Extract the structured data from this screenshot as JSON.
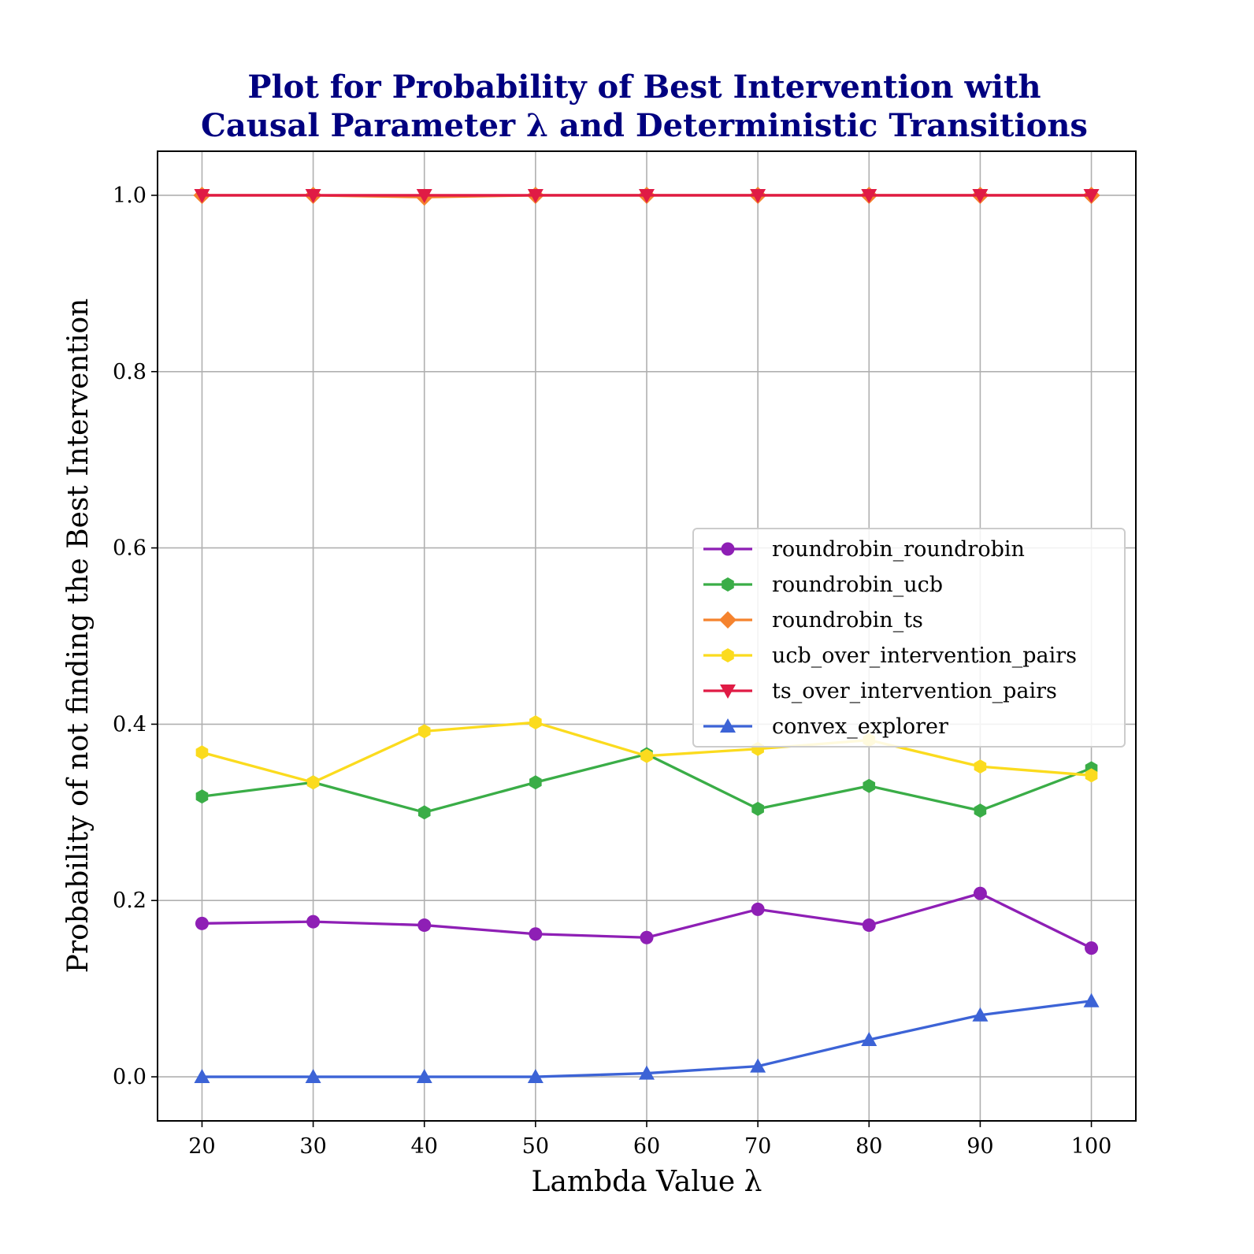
{
  "chart_data": {
    "type": "line",
    "title_lines": [
      "Plot for Probability of Best Intervention with",
      "Causal Parameter λ and Deterministic Transitions"
    ],
    "xlabel": "Lambda Value λ",
    "ylabel": "Probability of not finding the Best Intervention",
    "x": [
      20,
      30,
      40,
      50,
      60,
      70,
      80,
      90,
      100
    ],
    "x_ticks": [
      "20",
      "30",
      "40",
      "50",
      "60",
      "70",
      "80",
      "90",
      "100"
    ],
    "y_ticks": [
      "0.0",
      "0.2",
      "0.4",
      "0.6",
      "0.8",
      "1.0"
    ],
    "y_tick_values": [
      0.0,
      0.2,
      0.4,
      0.6,
      0.8,
      1.0
    ],
    "xlim": [
      16,
      104
    ],
    "ylim": [
      -0.05,
      1.05
    ],
    "grid": true,
    "legend_position": "center-right",
    "series": [
      {
        "name": "roundrobin_roundrobin",
        "color": "#8e1fb5",
        "marker": "circle",
        "values": [
          0.174,
          0.176,
          0.172,
          0.162,
          0.158,
          0.19,
          0.172,
          0.208,
          0.146
        ]
      },
      {
        "name": "roundrobin_ucb",
        "color": "#3aad47",
        "marker": "hexagon",
        "values": [
          0.318,
          0.334,
          0.3,
          0.334,
          0.366,
          0.304,
          0.33,
          0.302,
          0.35
        ]
      },
      {
        "name": "roundrobin_ts",
        "color": "#f5832e",
        "marker": "diamond",
        "values": [
          1.0,
          1.0,
          0.998,
          1.0,
          1.0,
          1.0,
          1.0,
          1.0,
          1.0
        ]
      },
      {
        "name": "ucb_over_intervention_pairs",
        "color": "#fbdb1e",
        "marker": "hexagon",
        "values": [
          0.368,
          0.334,
          0.392,
          0.402,
          0.364,
          0.372,
          0.382,
          0.352,
          0.342
        ]
      },
      {
        "name": "ts_over_intervention_pairs",
        "color": "#e01b45",
        "marker": "triangle-down",
        "values": [
          1.0,
          1.0,
          1.0,
          1.0,
          1.0,
          1.0,
          1.0,
          1.0,
          1.0
        ]
      },
      {
        "name": "convex_explorer",
        "color": "#3c63d6",
        "marker": "triangle-up",
        "values": [
          0.0,
          0.0,
          0.0,
          0.0,
          0.004,
          0.012,
          0.042,
          0.07,
          0.086
        ]
      }
    ]
  }
}
